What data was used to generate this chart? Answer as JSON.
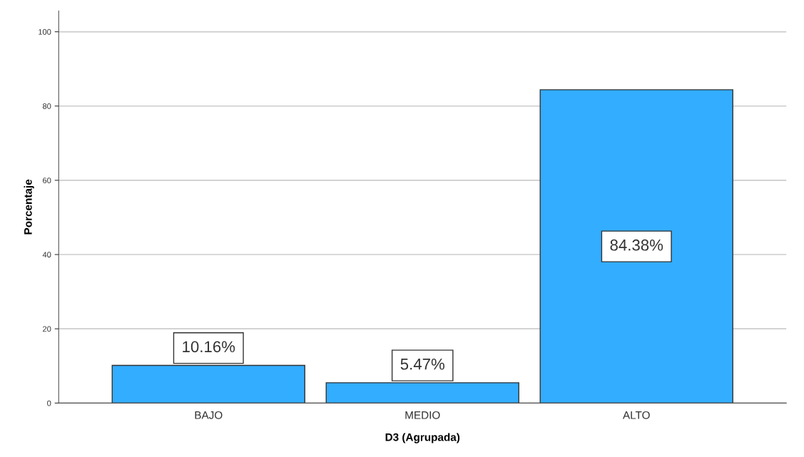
{
  "chart_data": {
    "type": "bar",
    "xlabel": "D3 (Agrupada)",
    "ylabel": "Porcentaje",
    "categories": [
      "BAJO",
      "MEDIO",
      "ALTO"
    ],
    "values": [
      10.16,
      5.47,
      84.38
    ],
    "value_labels": [
      "10.16%",
      "5.47%",
      "84.38%"
    ],
    "color": "#33adff",
    "ylim": [
      0,
      105.6
    ],
    "yticks": [
      0,
      20,
      40,
      60,
      80,
      100
    ],
    "grid": "y"
  }
}
